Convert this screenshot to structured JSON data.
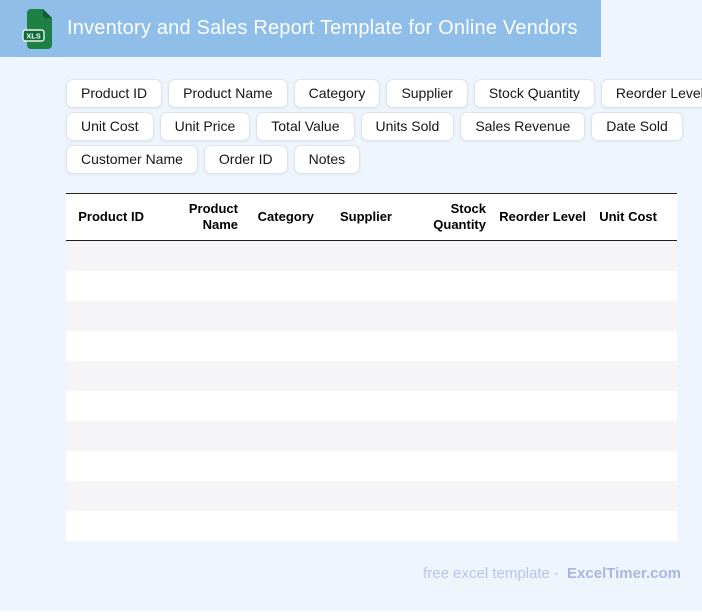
{
  "window": {
    "bg_color": "#eef5fd"
  },
  "header": {
    "title": "Inventory and Sales Report Template for Online Vendors",
    "bg_color": "#8fbfe9",
    "icon": {
      "name": "xls-file-icon",
      "label": "XLS",
      "color": "#1d8047"
    }
  },
  "field_chips": {
    "rows": [
      {
        "items": [
          "Product ID",
          "Product Name",
          "Category",
          "Supplier",
          "Stock Quantity",
          "Reorder Level"
        ]
      },
      {
        "items": [
          "Unit Cost",
          "Unit Price",
          "Total Value",
          "Units Sold",
          "Sales Revenue",
          "Date Sold"
        ]
      },
      {
        "items": [
          "Customer Name",
          "Order ID",
          "Notes"
        ]
      }
    ]
  },
  "table": {
    "columns": [
      "Product ID",
      "Product Name",
      "Category",
      "Supplier",
      "Stock Quantity",
      "Reorder Level",
      "Unit Cost"
    ],
    "empty_row_count": 10,
    "alt_row_color": "#f5f4f6"
  },
  "footer": {
    "text": "free excel template -",
    "brand": "ExcelTimer.com",
    "text_color": "#b9c3ea",
    "brand_color": "#a9b6e2"
  }
}
